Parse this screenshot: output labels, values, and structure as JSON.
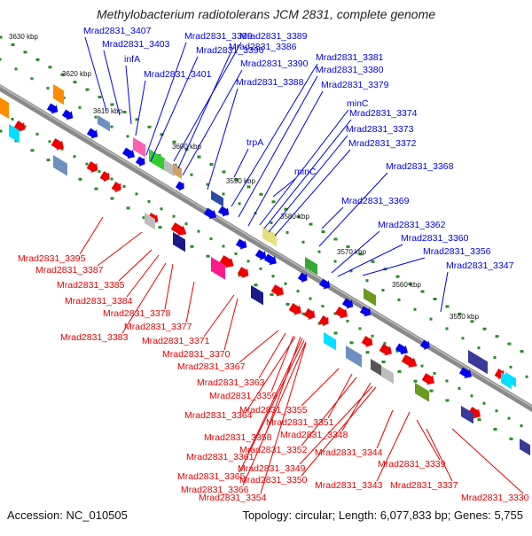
{
  "title": "Methylobacterium radiotolerans JCM 2831, complete genome",
  "footer": {
    "accession": "Accession: NC_010505",
    "summary": "Topology: circular; Length: 6,077,833 bp; Genes: 5,755"
  },
  "colors": {
    "plus_strand": "#0000ee",
    "minus_strand": "#ee0000",
    "backbone": "#8a8a8a",
    "tick": "#2a8a2a"
  },
  "kbp_ticks": [
    "3630 kbp",
    "3620 kbp",
    "3610 kbp",
    "3600 kbp",
    "3590 kbp",
    "3580 kbp",
    "3570 kbp",
    "3560 kbp",
    "3550 kbp"
  ],
  "upper_genes": [
    "Mrad2831_3407",
    "Mrad2831_3403",
    "infA",
    "Mrad2831_3401",
    "Mrad2831_3399",
    "Mrad2831_3396",
    "Mrad2831_3389",
    "Mrad2831_3386",
    "Mrad2831_3390",
    "Mrad2831_3388",
    "Mrad2831_3381",
    "Mrad2831_3380",
    "Mrad2831_3379",
    "trpA",
    "minC",
    "Mrad2831_3374",
    "Mrad2831_3373",
    "Mrad2831_3372",
    "minC",
    "Mrad2831_3368",
    "Mrad2831_3369",
    "Mrad2831_3362",
    "Mrad2831_3360",
    "Mrad2831_3356",
    "Mrad2831_3347"
  ],
  "lower_genes": [
    "Mrad2831_3395",
    "Mrad2831_3387",
    "Mrad2831_3385",
    "Mrad2831_3384",
    "Mrad2831_3378",
    "Mrad2831_3383",
    "Mrad2831_3377",
    "Mrad2831_3371",
    "Mrad2831_3370",
    "Mrad2831_3367",
    "Mrad2831_3363",
    "Mrad2831_3359",
    "Mrad2831_3364",
    "Mrad2831_3355",
    "Mrad2831_3358",
    "Mrad2831_3351",
    "Mrad2831_3361",
    "Mrad2831_3352",
    "Mrad2831_3348",
    "Mrad2831_3349",
    "Mrad2831_3344",
    "Mrad2831_3365",
    "Mrad2831_3350",
    "Mrad2831_3339",
    "Mrad2831_3366",
    "Mrad2831_3343",
    "Mrad2831_3337",
    "Mrad2831_3354",
    "Mrad2831_3330"
  ]
}
